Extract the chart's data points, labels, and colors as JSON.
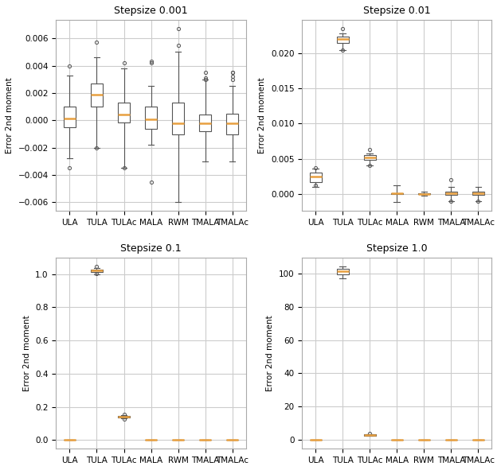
{
  "categories": [
    "ULA",
    "TULA",
    "TULAc",
    "MALA",
    "RWM",
    "TMALA",
    "TMALAc"
  ],
  "titles": [
    "Stepsize 0.001",
    "Stepsize 0.01",
    "Stepsize 0.1",
    "Stepsize 1.0"
  ],
  "ylabel": "Error 2nd moment",
  "box_facecolor": "#ffffff",
  "box_edgecolor": "#555555",
  "median_color": "#e8a040",
  "whisker_color": "#555555",
  "flier_marker": "o",
  "flier_color": "#555555",
  "background_color": "#ffffff",
  "grid_color": "#cccccc",
  "figsize": [
    6.29,
    5.91
  ],
  "dpi": 100,
  "subplot_data": {
    "step001": {
      "ULA": {
        "q1": -0.0005,
        "med": 0.00015,
        "q3": 0.001,
        "whislo": -0.0028,
        "whishi": 0.0033,
        "fliers": [
          0.004,
          -0.0035
        ]
      },
      "TULA": {
        "q1": 0.001,
        "med": 0.0019,
        "q3": 0.0027,
        "whislo": -0.002,
        "whishi": 0.0046,
        "fliers": [
          0.0057,
          -0.002
        ]
      },
      "TULAc": {
        "q1": -0.00015,
        "med": 0.0004,
        "q3": 0.0013,
        "whislo": -0.0035,
        "whishi": 0.0038,
        "fliers": [
          0.0042,
          -0.0035
        ]
      },
      "MALA": {
        "q1": -0.0006,
        "med": 5e-05,
        "q3": 0.001,
        "whislo": -0.0018,
        "whishi": 0.0025,
        "fliers": [
          0.0042,
          0.0043,
          -0.0045
        ]
      },
      "RWM": {
        "q1": -0.001,
        "med": -0.0002,
        "q3": 0.0013,
        "whislo": -0.006,
        "whishi": 0.005,
        "fliers": [
          0.0055,
          0.0067
        ]
      },
      "TMALA": {
        "q1": -0.0008,
        "med": -0.0002,
        "q3": 0.0004,
        "whislo": -0.003,
        "whishi": 0.003,
        "fliers": [
          0.003,
          0.0031,
          0.0035
        ]
      },
      "TMALAc": {
        "q1": -0.001,
        "med": -0.0002,
        "q3": 0.0005,
        "whislo": -0.003,
        "whishi": 0.0025,
        "fliers": [
          0.0035,
          0.003,
          0.0032,
          0.0035
        ]
      }
    },
    "step01": {
      "ULA": {
        "q1": 0.0017,
        "med": 0.0025,
        "q3": 0.003,
        "whislo": 0.001,
        "whishi": 0.0036,
        "fliers": [
          0.0037,
          0.0012
        ]
      },
      "TULA": {
        "q1": 0.0215,
        "med": 0.022,
        "q3": 0.0224,
        "whislo": 0.0205,
        "whishi": 0.0228,
        "fliers": [
          0.0235,
          0.0205
        ]
      },
      "TULAc": {
        "q1": 0.0048,
        "med": 0.0052,
        "q3": 0.0055,
        "whislo": 0.004,
        "whishi": 0.0058,
        "fliers": [
          0.0063,
          0.004
        ]
      },
      "MALA": {
        "q1": -5e-05,
        "med": 8e-05,
        "q3": 0.00015,
        "whislo": -0.0012,
        "whishi": 0.0012,
        "fliers": []
      },
      "RWM": {
        "q1": -3e-05,
        "med": 3e-05,
        "q3": 8e-05,
        "whislo": -0.0003,
        "whishi": 0.0003,
        "fliers": []
      },
      "TMALA": {
        "q1": -0.0001,
        "med": 0.0001,
        "q3": 0.0003,
        "whislo": -0.001,
        "whishi": 0.001,
        "fliers": [
          0.002,
          -0.001
        ]
      },
      "TMALAc": {
        "q1": -0.0001,
        "med": 0.0001,
        "q3": 0.0003,
        "whislo": -0.001,
        "whishi": 0.001,
        "fliers": [
          -0.001
        ]
      }
    },
    "step1": {
      "ULA": {
        "q1": 0.0,
        "med": 0.0,
        "q3": 0.0,
        "whislo": 0.0,
        "whishi": 0.0,
        "fliers": []
      },
      "TULA": {
        "q1": 1.01,
        "med": 1.02,
        "q3": 1.025,
        "whislo": 1.0,
        "whishi": 1.035,
        "fliers": [
          1.045,
          1.005
        ]
      },
      "TULAc": {
        "q1": 0.135,
        "med": 0.14,
        "q3": 0.145,
        "whislo": 0.13,
        "whishi": 0.15,
        "fliers": [
          0.155,
          0.128
        ]
      },
      "MALA": {
        "q1": 0.0,
        "med": 0.0,
        "q3": 0.0,
        "whislo": 0.0,
        "whishi": 0.0,
        "fliers": []
      },
      "RWM": {
        "q1": 0.0,
        "med": 0.0,
        "q3": 0.0,
        "whislo": 0.0,
        "whishi": 0.0,
        "fliers": []
      },
      "TMALA": {
        "q1": 0.0,
        "med": 0.0,
        "q3": 0.0,
        "whislo": 0.0,
        "whishi": 0.0,
        "fliers": []
      },
      "TMALAc": {
        "q1": 0.0,
        "med": 0.0,
        "q3": 0.0,
        "whislo": 0.0,
        "whishi": 0.0,
        "fliers": []
      }
    },
    "step10": {
      "ULA": {
        "q1": 0.0,
        "med": 0.0,
        "q3": 0.0,
        "whislo": 0.0,
        "whishi": 0.0,
        "fliers": []
      },
      "TULA": {
        "q1": 99.5,
        "med": 101.0,
        "q3": 102.5,
        "whislo": 97.0,
        "whishi": 104.0,
        "fliers": []
      },
      "TULAc": {
        "q1": 2.8,
        "med": 3.1,
        "q3": 3.4,
        "whislo": 2.5,
        "whishi": 3.7,
        "fliers": [
          4.0
        ]
      },
      "MALA": {
        "q1": 0.0,
        "med": 0.0,
        "q3": 0.0,
        "whislo": 0.0,
        "whishi": 0.0,
        "fliers": []
      },
      "RWM": {
        "q1": 0.0,
        "med": 0.0,
        "q3": 0.0,
        "whislo": 0.0,
        "whishi": 0.0,
        "fliers": []
      },
      "TMALA": {
        "q1": 0.0,
        "med": 0.0,
        "q3": 0.0,
        "whislo": 0.0,
        "whishi": 0.0,
        "fliers": []
      },
      "TMALAc": {
        "q1": 0.0,
        "med": 0.0,
        "q3": 0.0,
        "whislo": 0.0,
        "whishi": 0.0,
        "fliers": []
      }
    }
  }
}
